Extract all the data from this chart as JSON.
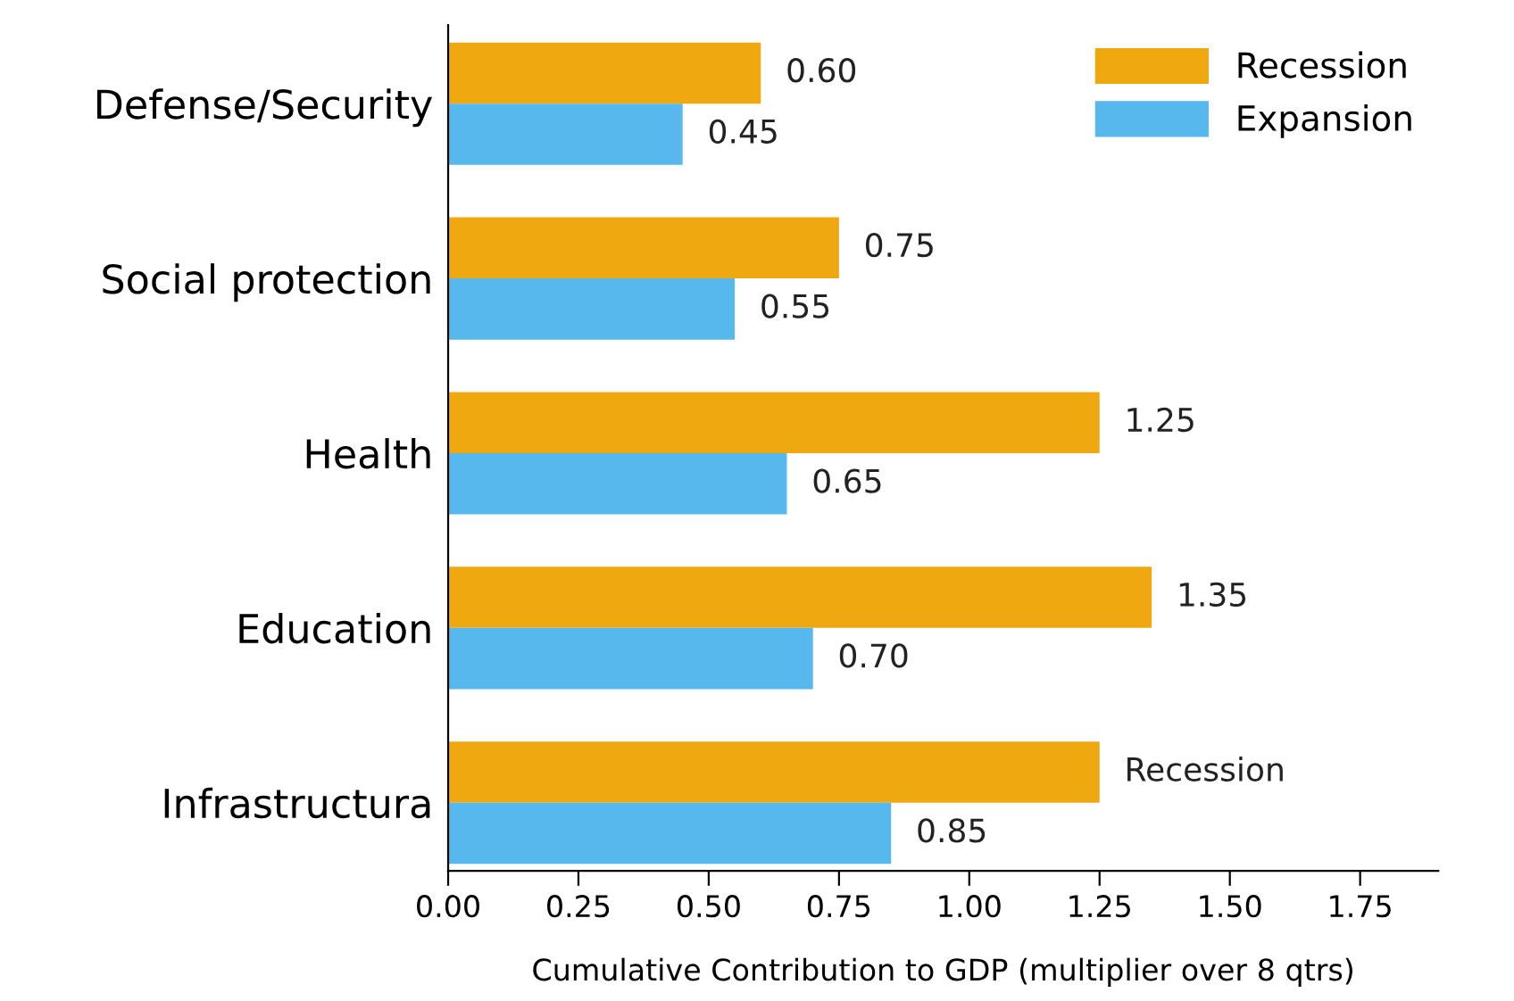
{
  "chart_data": {
    "type": "bar",
    "orientation": "horizontal",
    "categories": [
      "Defense/Security",
      "Social protection",
      "Health",
      "Education",
      "Infrastructura"
    ],
    "xlabel": "Cumulative Contribution to GDP (multiplier over 8 qtrs)",
    "series": [
      {
        "name": "Recession",
        "color": "#f0a810",
        "values": [
          0.6,
          0.75,
          1.25,
          1.35,
          1.25
        ],
        "value_labels": [
          "0.60",
          "0.75",
          "1.25",
          "1.35",
          "Recession"
        ]
      },
      {
        "name": "Expansion",
        "color": "#56b8ec",
        "values": [
          0.45,
          0.55,
          0.65,
          0.7,
          0.85
        ],
        "value_labels": [
          "0.45",
          "0.55",
          "0.65",
          "0.70",
          "0.85"
        ]
      }
    ],
    "xlim": [
      0,
      1.9
    ],
    "xticks": [
      {
        "value": 0,
        "label": "0.00"
      },
      {
        "value": 0.25,
        "label": "0.25"
      },
      {
        "value": 0.5,
        "label": "0.50"
      },
      {
        "value": 0.75,
        "label": "0.75"
      },
      {
        "value": 1.0,
        "label": "1.00"
      },
      {
        "value": 1.25,
        "label": "1.25"
      },
      {
        "value": 1.5,
        "label": "1.50"
      },
      {
        "value": 1.75,
        "label": "1.75"
      }
    ],
    "legend": "top right",
    "grid": false
  }
}
